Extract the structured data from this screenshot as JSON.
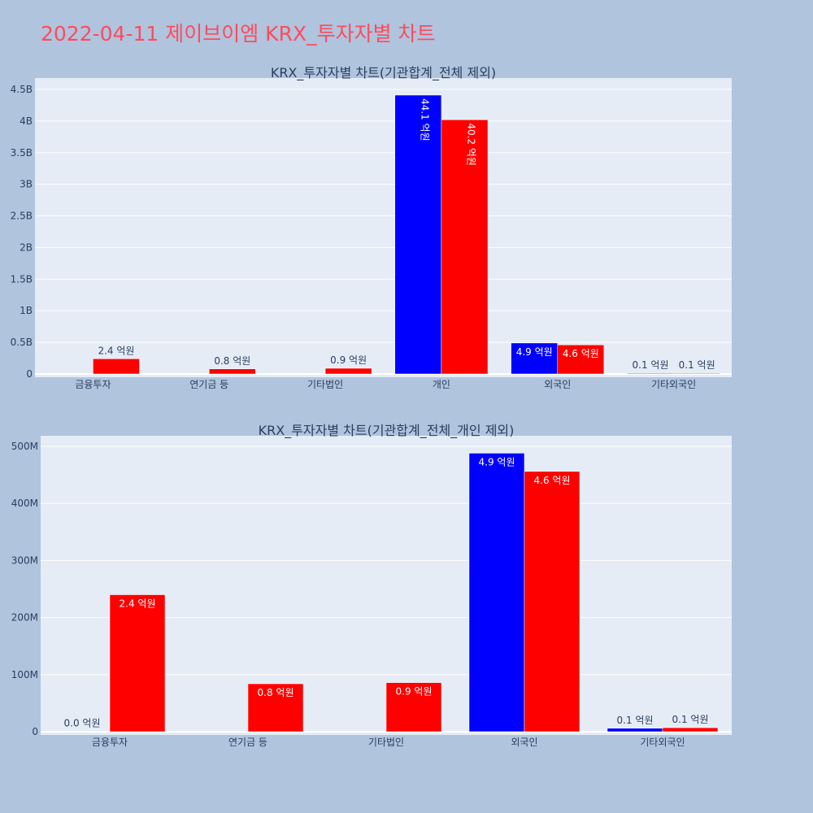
{
  "page": {
    "title": "2022-04-11 제이브이엠 KRX_투자자별 차트"
  },
  "colors": {
    "background": "#b0c4de",
    "plot_bg": "#e5ecf6",
    "title": "#ff4b5c",
    "series_a": "#0000ff",
    "series_b": "#ff0000"
  },
  "chart_data": [
    {
      "type": "bar",
      "title": "KRX_투자자별 차트(기관합계_전체 제외)",
      "categories": [
        "금융투자",
        "연기금 등",
        "기타법인",
        "개인",
        "외국인",
        "기타외국인"
      ],
      "ylim": [
        0,
        4600000000
      ],
      "yticks": [
        0,
        500000000,
        1000000000,
        1500000000,
        2000000000,
        2500000000,
        3000000000,
        3500000000,
        4000000000,
        4500000000
      ],
      "ytick_labels": [
        "0",
        "0.5B",
        "1B",
        "1.5B",
        "2B",
        "2.5B",
        "3B",
        "3.5B",
        "4B",
        "4.5B"
      ],
      "series": [
        {
          "color": "#0000ff",
          "values": [
            null,
            null,
            null,
            4410000000,
            490000000,
            10000000
          ],
          "labels": [
            "",
            "",
            "",
            "44.1 억원",
            "4.9 억원",
            "0.1 억원"
          ]
        },
        {
          "color": "#ff0000",
          "values": [
            240000000,
            80000000,
            90000000,
            4020000000,
            460000000,
            10000000
          ],
          "labels": [
            "2.4 억원",
            "0.8 억원",
            "0.9 억원",
            "40.2 억원",
            "4.6 억원",
            "0.1 억원"
          ]
        }
      ],
      "grid": true
    },
    {
      "type": "bar",
      "title": "KRX_투자자별 차트(기관합계_전체_개인 제외)",
      "categories": [
        "금융투자",
        "연기금 등",
        "기타법인",
        "외국인",
        "기타외국인"
      ],
      "ylim": [
        0,
        520000000
      ],
      "yticks": [
        0,
        100000000,
        200000000,
        300000000,
        400000000,
        500000000
      ],
      "ytick_labels": [
        "0",
        "100M",
        "200M",
        "300M",
        "400M",
        "500M"
      ],
      "series": [
        {
          "color": "#0000ff",
          "values": [
            300000,
            null,
            null,
            488000000,
            6000000
          ],
          "labels": [
            "0.0 억원",
            "",
            "",
            "4.9 억원",
            "0.1 억원"
          ]
        },
        {
          "color": "#ff0000",
          "values": [
            240000000,
            84000000,
            86000000,
            456000000,
            7000000
          ],
          "labels": [
            "2.4 억원",
            "0.8 억원",
            "0.9 억원",
            "4.6 억원",
            "0.1 억원"
          ]
        }
      ],
      "grid": true
    }
  ]
}
